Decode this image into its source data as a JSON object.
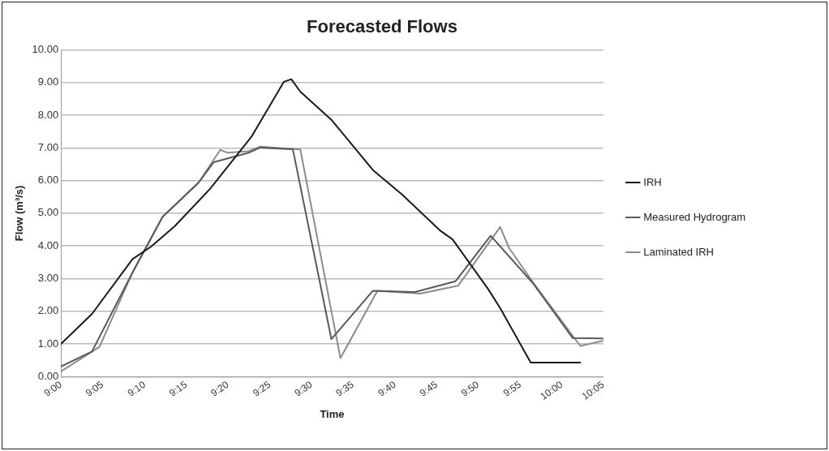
{
  "chart_data": {
    "type": "line",
    "title": "Forecasted Flows",
    "xlabel": "Time",
    "ylabel": "Flow (m³/s)",
    "xlim": [
      9,
      10.083
    ],
    "xticks": [
      {
        "value": 9,
        "label": "9:00"
      },
      {
        "value": 9.083,
        "label": "9:05"
      },
      {
        "value": 9.167,
        "label": "9:10"
      },
      {
        "value": 9.25,
        "label": "9:15"
      },
      {
        "value": 9.333,
        "label": "9:20"
      },
      {
        "value": 9.417,
        "label": "9:25"
      },
      {
        "value": 9.5,
        "label": "9:30"
      },
      {
        "value": 9.583,
        "label": "9:35"
      },
      {
        "value": 9.667,
        "label": "9:40"
      },
      {
        "value": 9.75,
        "label": "9:45"
      },
      {
        "value": 9.833,
        "label": "9:50"
      },
      {
        "value": 9.917,
        "label": "9:55"
      },
      {
        "value": 10,
        "label": "10:00"
      },
      {
        "value": 10.083,
        "label": "10:05"
      }
    ],
    "ylim": [
      0,
      10
    ],
    "yticks": [
      {
        "value": 0,
        "label": "0.00"
      },
      {
        "value": 1,
        "label": "1.00"
      },
      {
        "value": 2,
        "label": "2.00"
      },
      {
        "value": 3,
        "label": "3.00"
      },
      {
        "value": 4,
        "label": "4.00"
      },
      {
        "value": 5,
        "label": "5.00"
      },
      {
        "value": 6,
        "label": "6.00"
      },
      {
        "value": 7,
        "label": "7.00"
      },
      {
        "value": 8,
        "label": "8.00"
      },
      {
        "value": 9,
        "label": "9.00"
      },
      {
        "value": 10,
        "label": "10.00"
      }
    ],
    "grid": "y",
    "legend": "right",
    "marker": "none",
    "line_style": "solid",
    "series": [
      {
        "name": "IRH",
        "color": "#1a1a1a",
        "x": [
          9,
          9.062,
          9.143,
          9.18,
          9.227,
          9.298,
          9.38,
          9.445,
          9.46,
          9.478,
          9.54,
          9.623,
          9.682,
          9.758,
          9.782,
          9.853,
          9.877,
          9.938,
          10.037
        ],
        "values": [
          1.0,
          1.92,
          3.6,
          3.98,
          4.6,
          5.75,
          7.33,
          9.02,
          9.1,
          8.72,
          7.86,
          6.32,
          5.56,
          4.46,
          4.2,
          2.68,
          2.1,
          0.43,
          0.43
        ]
      },
      {
        "name": "Measured Hydrogram",
        "color": "#595959",
        "x": [
          9,
          9.062,
          9.142,
          9.203,
          9.275,
          9.305,
          9.375,
          9.398,
          9.463,
          9.54,
          9.623,
          9.707,
          9.788,
          9.858,
          9.942,
          10.022,
          10.083
        ],
        "values": [
          0.31,
          0.77,
          3.16,
          4.89,
          5.94,
          6.56,
          6.85,
          7.01,
          6.96,
          1.15,
          2.63,
          2.59,
          2.92,
          4.31,
          2.87,
          1.18,
          1.17
        ]
      },
      {
        "name": "Laminated IRH",
        "color": "#8c8c8c",
        "x": [
          9,
          9.077,
          9.142,
          9.203,
          9.275,
          9.318,
          9.333,
          9.375,
          9.398,
          9.478,
          9.558,
          9.632,
          9.717,
          9.793,
          9.877,
          9.895,
          9.942,
          10.037,
          10.083
        ],
        "values": [
          0.16,
          0.91,
          3.16,
          4.89,
          5.94,
          6.94,
          6.85,
          6.9,
          7.04,
          6.95,
          0.57,
          2.63,
          2.54,
          2.78,
          4.58,
          3.93,
          2.9,
          0.94,
          1.1
        ]
      }
    ]
  }
}
